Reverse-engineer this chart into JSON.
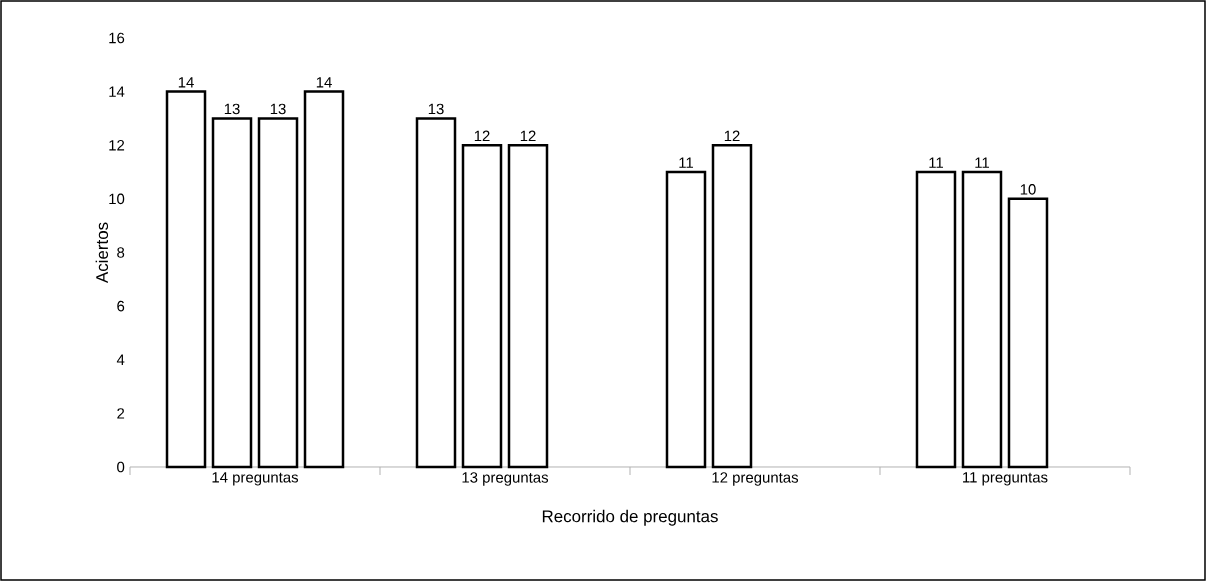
{
  "chart_data": {
    "type": "bar",
    "xlabel": "Recorrido de preguntas",
    "ylabel": "Aciertos",
    "categories": [
      "14 preguntas",
      "13 preguntas",
      "12 preguntas",
      "11 preguntas"
    ],
    "series": [
      {
        "color": "#ffffff",
        "values": [
          14,
          13,
          11,
          11
        ]
      },
      {
        "color": "#ffffff",
        "values": [
          13,
          12,
          12,
          11
        ]
      },
      {
        "color": "#ffffff",
        "values": [
          13,
          12,
          null,
          10
        ]
      },
      {
        "color": "#ffffff",
        "values": [
          14,
          null,
          null,
          null
        ]
      }
    ],
    "ylim": [
      0,
      16
    ],
    "yticks": [
      0,
      2,
      4,
      6,
      8,
      10,
      12,
      14,
      16
    ],
    "data_labels": true,
    "grid": false
  }
}
